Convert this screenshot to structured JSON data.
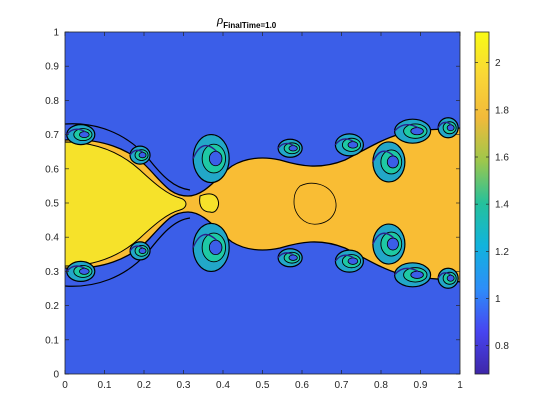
{
  "chart_data": {
    "type": "heatmap",
    "title": {
      "symbol": "ρ",
      "subscript": "FinalTime=1.0"
    },
    "xlabel": "",
    "ylabel": "",
    "xlim": [
      0,
      1
    ],
    "ylim": [
      0,
      1
    ],
    "x_ticks": [
      "0",
      "0.1",
      "0.2",
      "0.3",
      "0.4",
      "0.5",
      "0.6",
      "0.7",
      "0.8",
      "0.9",
      "1"
    ],
    "y_ticks": [
      "0",
      "0.1",
      "0.2",
      "0.3",
      "0.4",
      "0.5",
      "0.6",
      "0.7",
      "0.8",
      "0.9",
      "1"
    ],
    "colorbar": {
      "range": [
        0.68,
        2.13
      ],
      "ticks": [
        "0.8",
        "1",
        "1.2",
        "1.4",
        "1.6",
        "1.8",
        "2"
      ],
      "colormap": "parula",
      "colors": [
        "#3e26a8",
        "#4745f1",
        "#2d8ef9",
        "#11b3dd",
        "#25c19b",
        "#9fc74b",
        "#f2ba3a",
        "#f9d736",
        "#f9fb15"
      ]
    },
    "fill_levels": {
      "outer_density": 1.0,
      "inner_density": 1.9,
      "core_density": 2.1
    },
    "field_colors": {
      "outer": "#3b5ee8",
      "inner": "#f9bd34",
      "core": "#f6e22a",
      "vortex_mid": "#22a7c8",
      "vortex_light": "#1ec9a4",
      "vortex_dark": "#2b1f8c",
      "contour": "#000000"
    },
    "grid": false,
    "legend": "colorbar-right"
  }
}
